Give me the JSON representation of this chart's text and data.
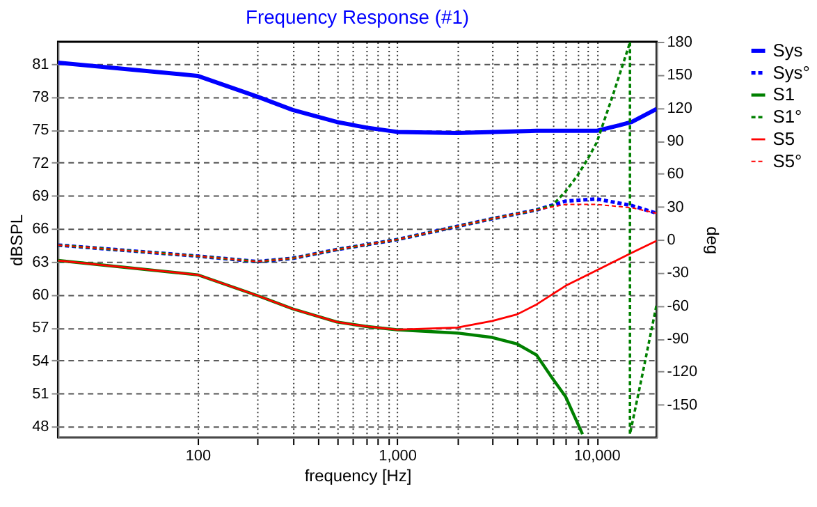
{
  "chart_data": {
    "type": "line",
    "title": "Frequency Response (#1)",
    "xlabel": "frequency [Hz]",
    "ylabel": "dBSPL",
    "y2label": "deg",
    "log": "x",
    "grid": true,
    "legend": "right",
    "xlim": [
      20,
      20000
    ],
    "ylim": [
      47,
      83
    ],
    "y2lim": [
      -180,
      180
    ],
    "xticks": [
      {
        "value": 100,
        "label": "100"
      },
      {
        "value": 200,
        "label": null
      },
      {
        "value": 300,
        "label": null
      },
      {
        "value": 400,
        "label": null
      },
      {
        "value": 500,
        "label": null
      },
      {
        "value": 600,
        "label": null
      },
      {
        "value": 700,
        "label": null
      },
      {
        "value": 800,
        "label": null
      },
      {
        "value": 900,
        "label": null
      },
      {
        "value": 1000,
        "label": "1,000"
      },
      {
        "value": 2000,
        "label": null
      },
      {
        "value": 3000,
        "label": null
      },
      {
        "value": 4000,
        "label": null
      },
      {
        "value": 5000,
        "label": null
      },
      {
        "value": 6000,
        "label": null
      },
      {
        "value": 7000,
        "label": null
      },
      {
        "value": 8000,
        "label": null
      },
      {
        "value": 9000,
        "label": null
      },
      {
        "value": 10000,
        "label": "10,000"
      }
    ],
    "yticks": [
      48,
      51,
      54,
      57,
      60,
      63,
      66,
      69,
      72,
      75,
      78,
      81
    ],
    "y2ticks": [
      -150,
      -120,
      -90,
      -60,
      -30,
      0,
      30,
      60,
      90,
      120,
      150,
      180
    ],
    "series": [
      {
        "name": "Sys",
        "color": "#0000ff",
        "line_style": "solid",
        "x": [
          20,
          100,
          200,
          300,
          500,
          700,
          1000,
          2000,
          5000,
          10000,
          13000,
          15000,
          20000
        ],
        "values": [
          81.1,
          79.9,
          78.0,
          76.8,
          75.7,
          75.2,
          74.8,
          74.7,
          74.9,
          74.9,
          75.4,
          75.7,
          76.9
        ]
      },
      {
        "name": "Sys°",
        "color": "#0000ff",
        "line_style": "dashed",
        "axis": "y2",
        "x": [
          20,
          100,
          200,
          300,
          500,
          1000,
          2000,
          3000,
          5000,
          7000,
          10000,
          15000,
          20000
        ],
        "values": [
          -5,
          -15,
          -20,
          -17,
          -9,
          0,
          12,
          19,
          27,
          35,
          37,
          31,
          24
        ]
      },
      {
        "name": "S1",
        "color": "#008000",
        "line_style": "solid",
        "x": [
          20,
          100,
          200,
          300,
          500,
          700,
          1000,
          2000,
          3000,
          4000,
          5000,
          6000,
          7000,
          8500
        ],
        "values": [
          63.1,
          61.8,
          59.9,
          58.7,
          57.5,
          57.1,
          56.8,
          56.5,
          56.1,
          55.5,
          54.5,
          52.4,
          50.7,
          47.3
        ]
      },
      {
        "name": "S1°",
        "color": "#008000",
        "line_style": "dashed",
        "axis": "y2",
        "x": [
          20,
          100,
          200,
          300,
          500,
          1000,
          2000,
          3000,
          5000,
          6000,
          7000,
          8000,
          9000,
          10000,
          12000,
          14500,
          14700,
          14700,
          17000,
          20000
        ],
        "values": [
          -5,
          -15,
          -20,
          -17,
          -9,
          0,
          12,
          19,
          27,
          31,
          44,
          58,
          73,
          88,
          130,
          176,
          180,
          -177,
          -122,
          -59
        ]
      },
      {
        "name": "S5",
        "color": "#ff0000",
        "line_style": "solid",
        "x": [
          20,
          100,
          200,
          300,
          500,
          700,
          1000,
          2000,
          3000,
          4000,
          5000,
          7000,
          10000,
          15000,
          20000
        ],
        "values": [
          63.1,
          61.8,
          59.9,
          58.7,
          57.5,
          57.1,
          56.8,
          57.0,
          57.6,
          58.2,
          59.1,
          60.8,
          62.2,
          63.8,
          64.9
        ]
      },
      {
        "name": "S5°",
        "color": "#ff0000",
        "line_style": "dashed",
        "axis": "y2",
        "x": [
          20,
          100,
          200,
          300,
          500,
          1000,
          2000,
          3000,
          5000,
          7000,
          10000,
          15000,
          20000
        ],
        "values": [
          -5,
          -15,
          -20,
          -17,
          -9,
          0,
          12,
          19,
          27,
          32,
          32,
          29,
          24
        ]
      }
    ]
  }
}
